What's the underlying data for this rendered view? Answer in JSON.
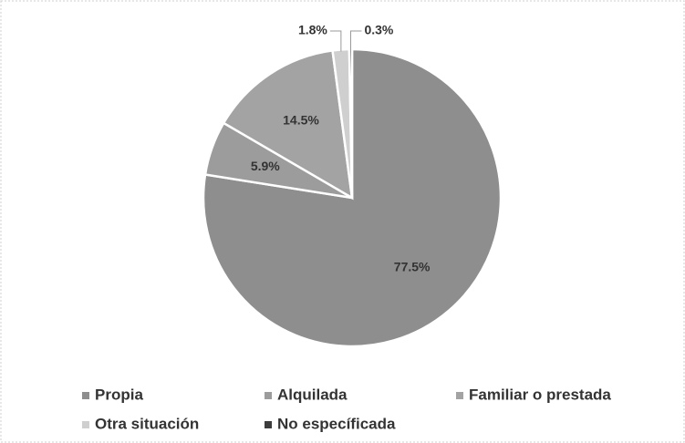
{
  "chart_data": {
    "type": "pie",
    "categories": [
      "Propia",
      "Alquilada",
      "Familiar o prestada",
      "Otra situación",
      "No específicada"
    ],
    "values": [
      77.5,
      5.9,
      14.5,
      1.8,
      0.3
    ],
    "value_labels": [
      "77.5%",
      "5.9%",
      "14.5%",
      "1.8%",
      "0.3%"
    ],
    "colors": [
      "#8e8e8e",
      "#9c9c9c",
      "#a3a3a3",
      "#cfcfcf",
      "#3c3c3c"
    ],
    "legend": "bottom"
  }
}
